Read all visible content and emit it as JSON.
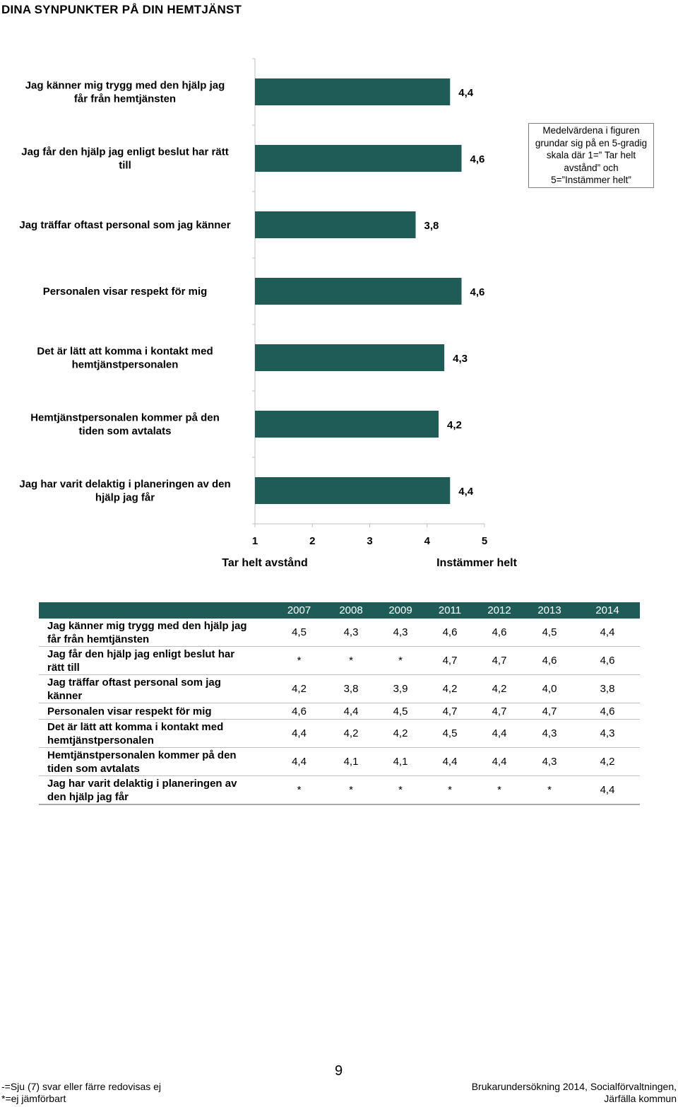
{
  "page_title": "DINA SYNPUNKTER PÅ DIN HEMTJÄNST",
  "chart_data": {
    "type": "bar",
    "orientation": "horizontal",
    "categories": [
      "Jag känner mig trygg med den hjälp jag\nfår från hemtjänsten",
      "Jag får den hjälp jag enligt beslut har rätt\ntill",
      "Jag träffar oftast personal som jag känner",
      "Personalen visar respekt för mig",
      "Det är lätt att komma i kontakt med\nhemtjänstpersonalen",
      "Hemtjänstpersonalen kommer på den\ntiden som avtalats",
      "Jag har varit delaktig i planeringen av den\nhjälp jag får"
    ],
    "values": [
      4.4,
      4.6,
      3.8,
      4.6,
      4.3,
      4.2,
      4.4
    ],
    "value_labels": [
      "4,4",
      "4,6",
      "3,8",
      "4,6",
      "4,3",
      "4,2",
      "4,4"
    ],
    "xlim": [
      1,
      5
    ],
    "xticks": [
      "1",
      "2",
      "3",
      "4",
      "5"
    ],
    "x_low_label": "Tar helt avstånd",
    "x_high_label": "Instämmer helt",
    "bar_color": "#1f5c57",
    "annotation": "Medelvärdena i figuren grundar sig på en 5-gradig skala där 1=” Tar helt avstånd” och 5=”Instämmer helt”"
  },
  "table": {
    "years": [
      "2007",
      "2008",
      "2009",
      "2011",
      "2012",
      "2013",
      "2014"
    ],
    "rows": [
      {
        "label": "Jag känner mig trygg med den hjälp jag\nfår från hemtjänsten",
        "values": [
          "4,5",
          "4,3",
          "4,3",
          "4,6",
          "4,6",
          "4,5",
          "4,4"
        ]
      },
      {
        "label": "Jag får den hjälp jag enligt beslut har\nrätt till",
        "values": [
          "*",
          "*",
          "*",
          "4,7",
          "4,7",
          "4,6",
          "4,6"
        ]
      },
      {
        "label": "Jag träffar oftast personal som jag\nkänner",
        "values": [
          "4,2",
          "3,8",
          "3,9",
          "4,2",
          "4,2",
          "4,0",
          "3,8"
        ]
      },
      {
        "label": "Personalen visar respekt för mig",
        "values": [
          "4,6",
          "4,4",
          "4,5",
          "4,7",
          "4,7",
          "4,7",
          "4,6"
        ]
      },
      {
        "label": "Det är lätt att komma i kontakt med\nhemtjänstpersonalen",
        "values": [
          "4,4",
          "4,2",
          "4,2",
          "4,5",
          "4,4",
          "4,3",
          "4,3"
        ]
      },
      {
        "label": "Hemtjänstpersonalen kommer på den\ntiden som avtalats",
        "values": [
          "4,4",
          "4,1",
          "4,1",
          "4,4",
          "4,4",
          "4,3",
          "4,2"
        ]
      },
      {
        "label": "Jag har varit delaktig i planeringen av\nden hjälp jag får",
        "values": [
          "*",
          "*",
          "*",
          "*",
          "*",
          "*",
          "4,4"
        ]
      }
    ]
  },
  "page_number": "9",
  "footnote_left": "-=Sju (7) svar eller färre redovisas ej\n*=ej jämförbart",
  "footnote_right": "Brukarundersökning 2014, Socialförvaltningen,\nJärfälla kommun"
}
